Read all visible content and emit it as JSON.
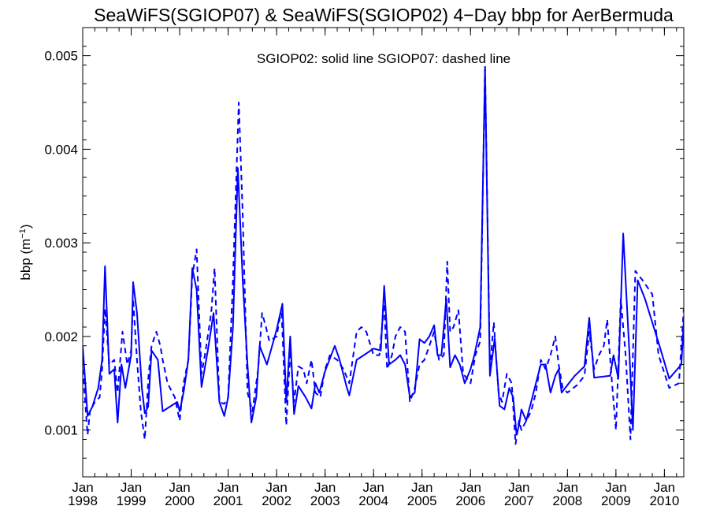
{
  "chart_data": {
    "type": "line",
    "title": "SeaWiFS(SGIOP07) & SeaWiFS(SGIOP02) 4−Day bbp for AerBermuda",
    "annotation": "SGIOP02: solid line   SGIOP07: dashed line",
    "ylabel": "bbp (m",
    "ylabel_sup": "−1",
    "ylabel_end": ")",
    "xlim": [
      1998.0,
      2010.4
    ],
    "ylim": [
      0.0005,
      0.0053
    ],
    "x_ticks": [
      {
        "value": 1998,
        "month": "Jan",
        "year": "1998"
      },
      {
        "value": 1999,
        "month": "Jan",
        "year": "1999"
      },
      {
        "value": 2000,
        "month": "Jan",
        "year": "2000"
      },
      {
        "value": 2001,
        "month": "Jan",
        "year": "2001"
      },
      {
        "value": 2002,
        "month": "Jan",
        "year": "2002"
      },
      {
        "value": 2003,
        "month": "Jan",
        "year": "2003"
      },
      {
        "value": 2004,
        "month": "Jan",
        "year": "2004"
      },
      {
        "value": 2005,
        "month": "Jan",
        "year": "2005"
      },
      {
        "value": 2006,
        "month": "Jan",
        "year": "2006"
      },
      {
        "value": 2007,
        "month": "Jan",
        "year": "2007"
      },
      {
        "value": 2008,
        "month": "Jan",
        "year": "2008"
      },
      {
        "value": 2009,
        "month": "Jan",
        "year": "2009"
      },
      {
        "value": 2010,
        "month": "Jan",
        "year": "2010"
      }
    ],
    "y_ticks": [
      {
        "value": 0.001,
        "label": "0.001"
      },
      {
        "value": 0.002,
        "label": "0.002"
      },
      {
        "value": 0.003,
        "label": "0.003"
      },
      {
        "value": 0.004,
        "label": "0.004"
      },
      {
        "value": 0.005,
        "label": "0.005"
      }
    ],
    "color": "#0000ff",
    "series": [
      {
        "style": "solid",
        "points": [
          [
            1998.0,
            0.0019
          ],
          [
            1998.1,
            0.00115
          ],
          [
            1998.2,
            0.00125
          ],
          [
            1998.32,
            0.00145
          ],
          [
            1998.4,
            0.00175
          ],
          [
            1998.46,
            0.00275
          ],
          [
            1998.55,
            0.0016
          ],
          [
            1998.65,
            0.00165
          ],
          [
            1998.72,
            0.00108
          ],
          [
            1998.8,
            0.0017
          ],
          [
            1998.88,
            0.00145
          ],
          [
            1999.0,
            0.0018
          ],
          [
            1999.04,
            0.00258
          ],
          [
            1999.12,
            0.00225
          ],
          [
            1999.22,
            0.00145
          ],
          [
            1999.28,
            0.00118
          ],
          [
            1999.35,
            0.00125
          ],
          [
            1999.42,
            0.00185
          ],
          [
            1999.55,
            0.00175
          ],
          [
            1999.65,
            0.0012
          ],
          [
            1999.95,
            0.0013
          ],
          [
            2000.0,
            0.0012
          ],
          [
            2000.08,
            0.0014
          ],
          [
            2000.18,
            0.00175
          ],
          [
            2000.26,
            0.00273
          ],
          [
            2000.35,
            0.0025
          ],
          [
            2000.45,
            0.00146
          ],
          [
            2000.58,
            0.00185
          ],
          [
            2000.7,
            0.00225
          ],
          [
            2000.82,
            0.0013
          ],
          [
            2000.92,
            0.00115
          ],
          [
            2001.0,
            0.00135
          ],
          [
            2001.1,
            0.0021
          ],
          [
            2001.2,
            0.0038
          ],
          [
            2001.3,
            0.0026
          ],
          [
            2001.4,
            0.0017
          ],
          [
            2001.48,
            0.00108
          ],
          [
            2001.58,
            0.00135
          ],
          [
            2001.65,
            0.0019
          ],
          [
            2001.8,
            0.0017
          ],
          [
            2002.0,
            0.00207
          ],
          [
            2002.12,
            0.00235
          ],
          [
            2002.2,
            0.0013
          ],
          [
            2002.28,
            0.002
          ],
          [
            2002.36,
            0.00117
          ],
          [
            2002.45,
            0.00147
          ],
          [
            2002.6,
            0.00135
          ],
          [
            2002.72,
            0.00123
          ],
          [
            2002.8,
            0.0015
          ],
          [
            2002.88,
            0.0014
          ],
          [
            2003.0,
            0.00163
          ],
          [
            2003.2,
            0.0019
          ],
          [
            2003.3,
            0.00175
          ],
          [
            2003.45,
            0.00145
          ],
          [
            2003.5,
            0.00137
          ],
          [
            2003.65,
            0.00175
          ],
          [
            2003.8,
            0.0018
          ],
          [
            2004.0,
            0.00187
          ],
          [
            2004.15,
            0.00185
          ],
          [
            2004.22,
            0.00254
          ],
          [
            2004.32,
            0.0017
          ],
          [
            2004.45,
            0.00175
          ],
          [
            2004.55,
            0.0018
          ],
          [
            2004.65,
            0.0017
          ],
          [
            2004.75,
            0.00135
          ],
          [
            2004.85,
            0.0014
          ],
          [
            2004.95,
            0.00197
          ],
          [
            2005.05,
            0.00193
          ],
          [
            2005.15,
            0.002
          ],
          [
            2005.25,
            0.00212
          ],
          [
            2005.32,
            0.0018
          ],
          [
            2005.4,
            0.0018
          ],
          [
            2005.5,
            0.0024
          ],
          [
            2005.58,
            0.00167
          ],
          [
            2005.68,
            0.0018
          ],
          [
            2005.78,
            0.0017
          ],
          [
            2005.88,
            0.0015
          ],
          [
            2006.0,
            0.00165
          ],
          [
            2006.08,
            0.0018
          ],
          [
            2006.2,
            0.0021
          ],
          [
            2006.3,
            0.00485
          ],
          [
            2006.4,
            0.00158
          ],
          [
            2006.5,
            0.00198
          ],
          [
            2006.6,
            0.00126
          ],
          [
            2006.7,
            0.00122
          ],
          [
            2006.8,
            0.00145
          ],
          [
            2006.88,
            0.00135
          ],
          [
            2006.95,
            0.00095
          ],
          [
            2007.0,
            0.00105
          ],
          [
            2007.05,
            0.00122
          ],
          [
            2007.15,
            0.0011
          ],
          [
            2007.25,
            0.0013
          ],
          [
            2007.35,
            0.0015
          ],
          [
            2007.45,
            0.0017
          ],
          [
            2007.55,
            0.0017
          ],
          [
            2007.65,
            0.0014
          ],
          [
            2007.75,
            0.00158
          ],
          [
            2007.82,
            0.00165
          ],
          [
            2007.88,
            0.0014
          ],
          [
            2008.0,
            0.00148
          ],
          [
            2008.15,
            0.00158
          ],
          [
            2008.35,
            0.00168
          ],
          [
            2008.45,
            0.0022
          ],
          [
            2008.55,
            0.00156
          ],
          [
            2008.88,
            0.00158
          ],
          [
            2008.95,
            0.0018
          ],
          [
            2009.05,
            0.00155
          ],
          [
            2009.15,
            0.0031
          ],
          [
            2009.28,
            0.0018
          ],
          [
            2009.35,
            0.001
          ],
          [
            2009.45,
            0.0026
          ],
          [
            2009.6,
            0.0024
          ],
          [
            2009.9,
            0.0019
          ],
          [
            2010.1,
            0.00155
          ],
          [
            2010.35,
            0.0017
          ],
          [
            2010.45,
            0.00263
          ],
          [
            2010.52,
            0.0024
          ]
        ]
      },
      {
        "style": "dashed",
        "points": [
          [
            1998.0,
            0.00165
          ],
          [
            1998.1,
            0.00095
          ],
          [
            1998.15,
            0.0012
          ],
          [
            1998.25,
            0.0013
          ],
          [
            1998.35,
            0.00135
          ],
          [
            1998.4,
            0.00165
          ],
          [
            1998.46,
            0.0023
          ],
          [
            1998.55,
            0.0017
          ],
          [
            1998.65,
            0.00175
          ],
          [
            1998.72,
            0.0014
          ],
          [
            1998.82,
            0.00205
          ],
          [
            1998.92,
            0.0017
          ],
          [
            1999.0,
            0.00185
          ],
          [
            1999.04,
            0.0024
          ],
          [
            1999.12,
            0.00175
          ],
          [
            1999.2,
            0.0012
          ],
          [
            1999.28,
            0.0009
          ],
          [
            1999.36,
            0.0016
          ],
          [
            1999.42,
            0.0019
          ],
          [
            1999.52,
            0.00205
          ],
          [
            1999.6,
            0.0019
          ],
          [
            1999.65,
            0.00175
          ],
          [
            1999.75,
            0.0015
          ],
          [
            1999.9,
            0.00135
          ],
          [
            2000.0,
            0.0011
          ],
          [
            2000.08,
            0.0015
          ],
          [
            2000.18,
            0.00175
          ],
          [
            2000.26,
            0.00265
          ],
          [
            2000.35,
            0.00293
          ],
          [
            2000.45,
            0.0016
          ],
          [
            2000.52,
            0.0018
          ],
          [
            2000.65,
            0.00225
          ],
          [
            2000.72,
            0.00273
          ],
          [
            2000.82,
            0.0013
          ],
          [
            2000.92,
            0.00128
          ],
          [
            2001.0,
            0.00135
          ],
          [
            2001.1,
            0.0026
          ],
          [
            2001.22,
            0.0045
          ],
          [
            2001.3,
            0.0033
          ],
          [
            2001.4,
            0.0014
          ],
          [
            2001.5,
            0.0012
          ],
          [
            2001.62,
            0.00165
          ],
          [
            2001.7,
            0.00225
          ],
          [
            2001.78,
            0.0021
          ],
          [
            2001.85,
            0.00195
          ],
          [
            2002.0,
            0.002
          ],
          [
            2002.1,
            0.0023
          ],
          [
            2002.2,
            0.00105
          ],
          [
            2002.28,
            0.00185
          ],
          [
            2002.36,
            0.0013
          ],
          [
            2002.45,
            0.00168
          ],
          [
            2002.55,
            0.00165
          ],
          [
            2002.62,
            0.0015
          ],
          [
            2002.72,
            0.00175
          ],
          [
            2002.8,
            0.0014
          ],
          [
            2002.9,
            0.00135
          ],
          [
            2003.0,
            0.00165
          ],
          [
            2003.1,
            0.0018
          ],
          [
            2003.25,
            0.00175
          ],
          [
            2003.38,
            0.00165
          ],
          [
            2003.5,
            0.0015
          ],
          [
            2003.65,
            0.00205
          ],
          [
            2003.75,
            0.0021
          ],
          [
            2003.85,
            0.00205
          ],
          [
            2004.0,
            0.0018
          ],
          [
            2004.12,
            0.0018
          ],
          [
            2004.22,
            0.00235
          ],
          [
            2004.28,
            0.00165
          ],
          [
            2004.38,
            0.0018
          ],
          [
            2004.45,
            0.002
          ],
          [
            2004.55,
            0.0021
          ],
          [
            2004.65,
            0.00205
          ],
          [
            2004.75,
            0.0013
          ],
          [
            2004.85,
            0.00145
          ],
          [
            2004.95,
            0.0017
          ],
          [
            2005.05,
            0.00175
          ],
          [
            2005.15,
            0.0019
          ],
          [
            2005.25,
            0.00205
          ],
          [
            2005.35,
            0.00175
          ],
          [
            2005.45,
            0.0018
          ],
          [
            2005.52,
            0.0028
          ],
          [
            2005.58,
            0.00205
          ],
          [
            2005.65,
            0.0021
          ],
          [
            2005.75,
            0.00228
          ],
          [
            2005.85,
            0.0016
          ],
          [
            2006.0,
            0.0015
          ],
          [
            2006.1,
            0.0018
          ],
          [
            2006.2,
            0.00195
          ],
          [
            2006.3,
            0.0049
          ],
          [
            2006.4,
            0.00165
          ],
          [
            2006.48,
            0.00215
          ],
          [
            2006.58,
            0.0014
          ],
          [
            2006.65,
            0.0013
          ],
          [
            2006.75,
            0.0016
          ],
          [
            2006.85,
            0.0015
          ],
          [
            2006.93,
            0.00085
          ],
          [
            2007.0,
            0.0011
          ],
          [
            2007.05,
            0.001
          ],
          [
            2007.15,
            0.0011
          ],
          [
            2007.25,
            0.0012
          ],
          [
            2007.35,
            0.0014
          ],
          [
            2007.45,
            0.00175
          ],
          [
            2007.55,
            0.00165
          ],
          [
            2007.65,
            0.0018
          ],
          [
            2007.75,
            0.002
          ],
          [
            2007.82,
            0.0017
          ],
          [
            2007.9,
            0.00145
          ],
          [
            2008.0,
            0.0014
          ],
          [
            2008.2,
            0.00148
          ],
          [
            2008.35,
            0.00158
          ],
          [
            2008.45,
            0.00205
          ],
          [
            2008.55,
            0.00165
          ],
          [
            2008.65,
            0.0018
          ],
          [
            2008.75,
            0.0019
          ],
          [
            2008.82,
            0.00218
          ],
          [
            2008.92,
            0.0015
          ],
          [
            2009.0,
            0.001
          ],
          [
            2009.1,
            0.0024
          ],
          [
            2009.2,
            0.0018
          ],
          [
            2009.3,
            0.0009
          ],
          [
            2009.4,
            0.0027
          ],
          [
            2009.55,
            0.0026
          ],
          [
            2009.75,
            0.00245
          ],
          [
            2009.88,
            0.0018
          ],
          [
            2010.1,
            0.00145
          ],
          [
            2010.3,
            0.0015
          ],
          [
            2010.4,
            0.0023
          ],
          [
            2010.47,
            0.0024
          ],
          [
            2010.52,
            0.00222
          ]
        ]
      }
    ]
  }
}
